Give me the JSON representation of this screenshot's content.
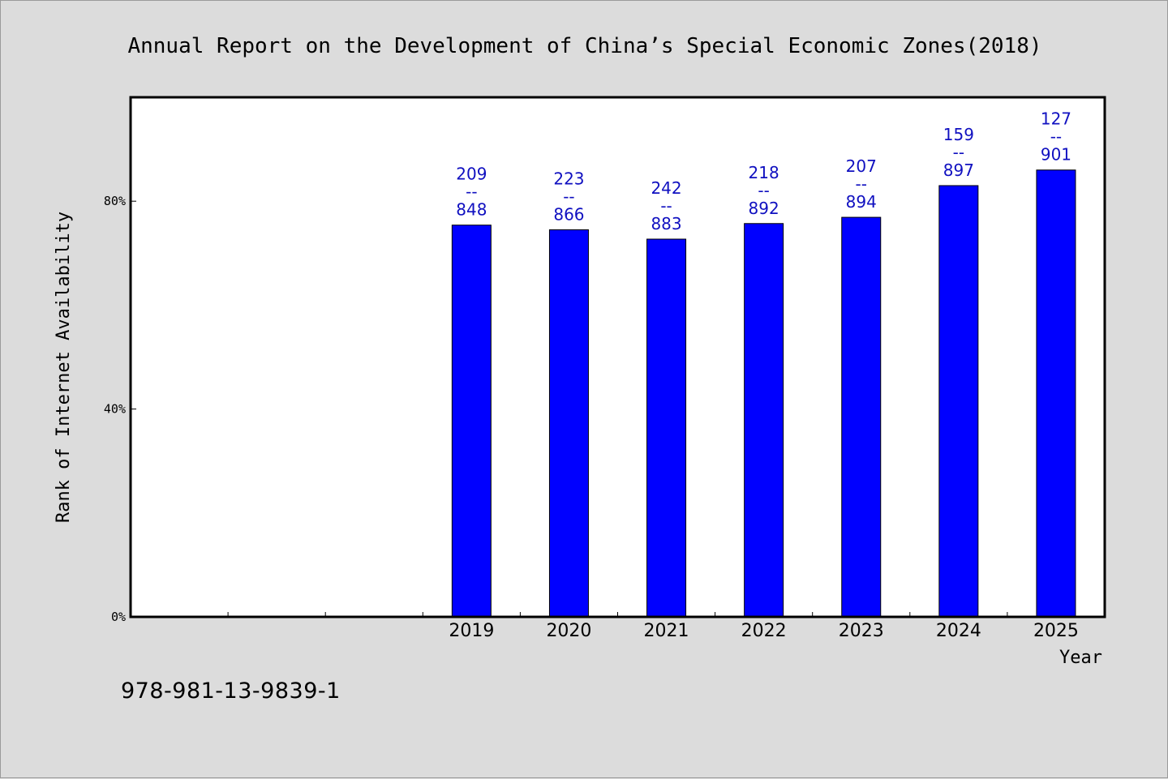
{
  "isbn": "978-981-13-9839-1",
  "chart_data": {
    "type": "bar",
    "title": "Annual Report on the Development of China’s Special Economic Zones(2018)",
    "xlabel": "Year",
    "ylabel": "Rank of Internet Availability",
    "y_ticks": [
      "0%",
      "40%",
      "80%"
    ],
    "ylim": [
      0,
      1.0
    ],
    "categories": [
      "",
      "",
      "",
      "2019",
      "2020",
      "2021",
      "2022",
      "2023",
      "2024",
      "2025"
    ],
    "values": [
      null,
      null,
      null,
      0.754,
      0.745,
      0.727,
      0.757,
      0.769,
      0.83,
      0.86
    ],
    "data_labels": [
      null,
      null,
      null,
      [
        "209",
        "--",
        "848"
      ],
      [
        "223",
        "--",
        "866"
      ],
      [
        "242",
        "--",
        "883"
      ],
      [
        "218",
        "--",
        "892"
      ],
      [
        "207",
        "--",
        "894"
      ],
      [
        "159",
        "--",
        "897"
      ],
      [
        "127",
        "--",
        "901"
      ]
    ],
    "bar_color": "#0000ff",
    "label_color": "#1010c0",
    "plot_background": "#ffffff",
    "page_background": "#dcdcdc",
    "grid": false,
    "legend": "none"
  }
}
